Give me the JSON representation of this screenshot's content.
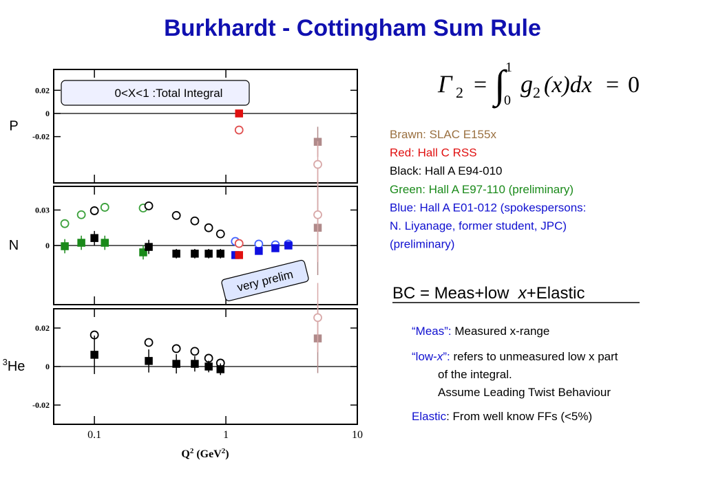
{
  "title": "Burkhardt - Cottingham Sum Rule",
  "chart_data": [
    {
      "type": "scatter",
      "panel_label": "P",
      "annotation": "0<X<1 :Total Integral",
      "ylim": [
        -0.06,
        0.038
      ],
      "yticks": [
        -0.02,
        0,
        0.02
      ],
      "zero_line": true,
      "series": [
        {
          "color": "#e01010",
          "marker": "square",
          "filled": true,
          "x": [
            1.26
          ],
          "values": [
            0.0
          ]
        },
        {
          "color": "#e05050",
          "marker": "circle",
          "filled": false,
          "x": [
            1.26
          ],
          "values": [
            -0.0143
          ]
        },
        {
          "color": "#b08a8a",
          "marker": "square",
          "filled": true,
          "x": [
            5
          ],
          "values": [
            -0.0245
          ],
          "errors": [
            0.013
          ]
        },
        {
          "color": "#d8a8a8",
          "marker": "circle",
          "filled": false,
          "x": [
            5
          ],
          "values": [
            -0.044
          ],
          "errors": [
            0.02
          ]
        }
      ]
    },
    {
      "type": "scatter",
      "panel_label": "N",
      "annotation": "very prelim",
      "ylim": [
        -0.05,
        0.05
      ],
      "yticks": [
        0,
        0.03
      ],
      "zero_line": true,
      "series": [
        {
          "color": "#3aa03a",
          "marker": "circle",
          "filled": false,
          "x": [
            0.0595,
            0.0795,
            0.12,
            0.235
          ],
          "values": [
            0.0185,
            0.026,
            0.0323,
            0.0317
          ]
        },
        {
          "color": "#1a8a1a",
          "marker": "square",
          "filled": true,
          "x": [
            0.0595,
            0.0795,
            0.12,
            0.235
          ],
          "values": [
            -0.0006,
            0.0023,
            0.0023,
            -0.0058
          ],
          "errors": [
            0.006,
            0.006,
            0.006,
            0.006
          ]
        },
        {
          "color": "#000000",
          "marker": "circle",
          "filled": false,
          "x": [
            0.1,
            0.259,
            0.42,
            0.58,
            0.74,
            0.91
          ],
          "values": [
            0.0294,
            0.0335,
            0.0254,
            0.0208,
            0.015,
            0.0098
          ]
        },
        {
          "color": "#000000",
          "marker": "square",
          "filled": true,
          "x": [
            0.1,
            0.259,
            0.42,
            0.58,
            0.74,
            0.91
          ],
          "values": [
            0.0063,
            -0.0012,
            -0.0069,
            -0.0069,
            -0.0069,
            -0.0069
          ],
          "errors": [
            0.006,
            0.006,
            0.004,
            0.004,
            0.004,
            0.004
          ]
        },
        {
          "color": "#4060ff",
          "marker": "circle",
          "filled": false,
          "x": [
            1.18,
            1.78,
            2.38,
            2.99
          ],
          "values": [
            0.0035,
            0.0012,
            0.0006,
            0.0012
          ]
        },
        {
          "color": "#1010e0",
          "marker": "square",
          "filled": true,
          "x": [
            1.18,
            1.78,
            2.38,
            2.99
          ],
          "values": [
            -0.0081,
            -0.0046,
            -0.0023,
            0.0
          ]
        },
        {
          "color": "#e05050",
          "marker": "circle",
          "filled": false,
          "x": [
            1.26
          ],
          "values": [
            0.0017
          ]
        },
        {
          "color": "#e01010",
          "marker": "square",
          "filled": true,
          "x": [
            1.26
          ],
          "values": [
            -0.0081
          ]
        },
        {
          "color": "#b08a8a",
          "marker": "square",
          "filled": true,
          "x": [
            5
          ],
          "values": [
            0.015
          ],
          "errors": [
            0.04
          ]
        },
        {
          "color": "#d8a8a8",
          "marker": "circle",
          "filled": false,
          "x": [
            5
          ],
          "values": [
            0.026
          ],
          "errors": [
            0.04
          ]
        }
      ]
    },
    {
      "type": "scatter",
      "panel_label": "He",
      "panel_label_sup": "3",
      "ylim": [
        -0.03,
        0.03
      ],
      "yticks": [
        -0.02,
        0,
        0.02
      ],
      "zero_line": true,
      "xlim": [
        0.049,
        10
      ],
      "xticks": [
        0.1,
        1,
        10
      ],
      "log_x": true,
      "xlabel": [
        "Q",
        "2",
        " (GeV",
        "2",
        ")"
      ],
      "series": [
        {
          "color": "#000000",
          "marker": "circle",
          "filled": false,
          "x": [
            0.1,
            0.259,
            0.42,
            0.58,
            0.74,
            0.91
          ],
          "values": [
            0.0164,
            0.0125,
            0.0093,
            0.0079,
            0.0043,
            0.0018
          ]
        },
        {
          "color": "#000000",
          "marker": "square",
          "filled": true,
          "x": [
            0.1,
            0.259,
            0.42,
            0.58,
            0.74,
            0.91
          ],
          "values": [
            0.0061,
            0.0029,
            0.0014,
            0.0014,
            0.0,
            -0.0014
          ],
          "errors": [
            0.01,
            0.006,
            0.005,
            0.004,
            0.003,
            0.003
          ]
        },
        {
          "color": "#b08a8a",
          "marker": "square",
          "filled": true,
          "x": [
            5
          ],
          "values": [
            0.0146
          ],
          "errors": [
            0.018
          ]
        },
        {
          "color": "#d8a8a8",
          "marker": "circle",
          "filled": false,
          "x": [
            5
          ],
          "values": [
            0.0254
          ],
          "errors": [
            0.018
          ]
        }
      ]
    }
  ],
  "formula": {
    "gamma": "Γ",
    "gamma_sub": "2",
    "eq1": "=",
    "integral": "∫",
    "upper": "1",
    "lower": "0",
    "g": "g",
    "g_sub": "2",
    "rest": "(x)dx",
    "eq2": "=",
    "zero": "0"
  },
  "legend_notes": [
    {
      "text": "Brawn: SLAC E155x",
      "color": "#9a7040"
    },
    {
      "text": "Red: Hall C RSS",
      "color": "#e01010"
    },
    {
      "text": "Black: Hall A E94-010",
      "color": "#000000"
    },
    {
      "text": "Green: Hall A E97-110 (preliminary)",
      "color": "#1a8a1a"
    },
    {
      "text": "Blue: Hall A E01-012 (spokespersons:",
      "color": "#1010d0"
    },
    {
      "text": "N. Liyanage, former student, JPC)",
      "color": "#1010d0"
    },
    {
      "text": "(preliminary)",
      "color": "#1010d0"
    }
  ],
  "bc": [
    "BC = Meas+low  ",
    "x",
    "+Elastic"
  ],
  "notes": [
    {
      "term": [
        "“Meas”:"
      ],
      "text": " Measured x-range"
    },
    {
      "term": [
        "“low-",
        "x",
        "”:"
      ],
      "text": " refers to unmeasured low x part",
      "lines": [
        "of the integral.",
        "Assume Leading Twist Behaviour"
      ]
    },
    {
      "term": [
        "Elastic"
      ],
      "text": ": From well know FFs (<5%)"
    }
  ]
}
